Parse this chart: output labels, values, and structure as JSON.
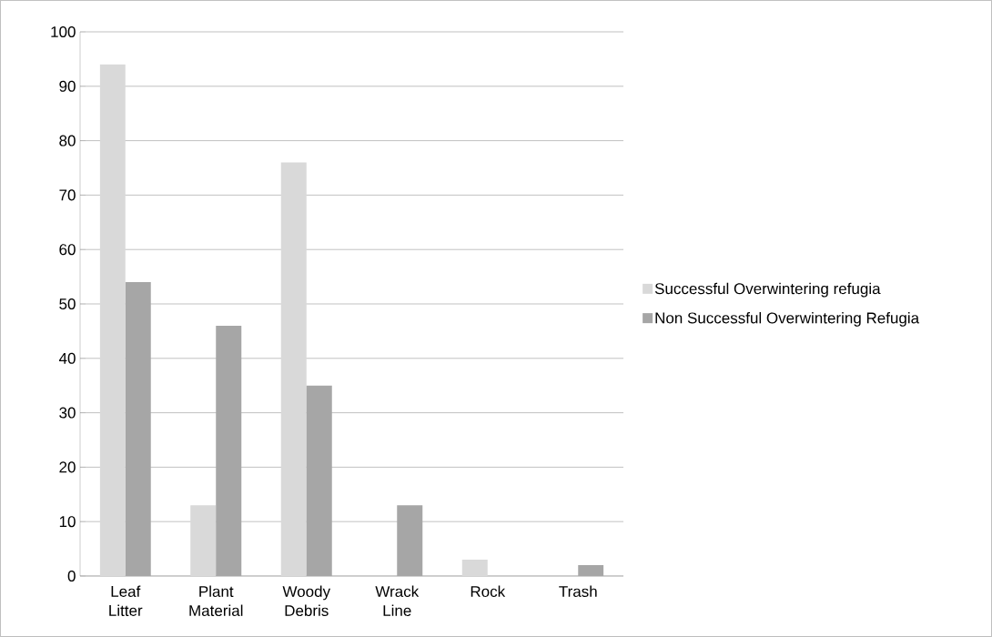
{
  "chart_data": {
    "type": "bar",
    "categories": [
      "Leaf Litter",
      "Plant Material",
      "Woody Debris",
      "Wrack Line",
      "Rock",
      "Trash"
    ],
    "series": [
      {
        "name": "Successful Overwintering refugia",
        "color": "#d9d9d9",
        "values": [
          94,
          13,
          76,
          0,
          3,
          0
        ]
      },
      {
        "name": "Non Successful Overwintering Refugia",
        "color": "#a6a6a6",
        "values": [
          54,
          46,
          35,
          13,
          0,
          2
        ]
      }
    ],
    "ylim": [
      0,
      100
    ],
    "yticks": [
      0,
      10,
      20,
      30,
      40,
      50,
      60,
      70,
      80,
      90,
      100
    ],
    "grid": "y",
    "legend": "right"
  }
}
